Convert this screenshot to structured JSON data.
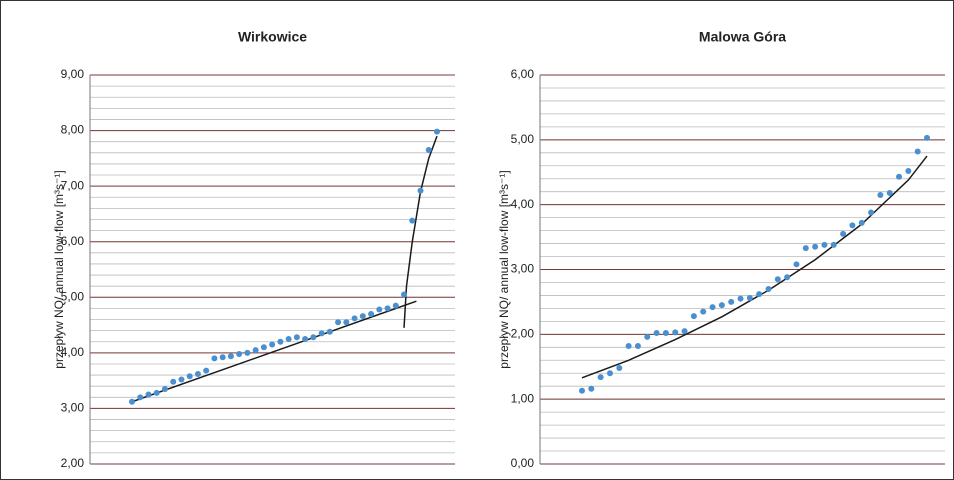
{
  "chart_data": [
    {
      "type": "scatter",
      "title": "Wirkowice",
      "y_label": "przepływ NQ/ annual low-flow [m³s⁻¹]",
      "ylim": [
        2,
        9
      ],
      "yticks": [
        {
          "value": 2,
          "label": "2,00"
        },
        {
          "value": 3,
          "label": "3,00"
        },
        {
          "value": 4,
          "label": "4,00"
        },
        {
          "value": 5,
          "label": "5,00"
        },
        {
          "value": 6,
          "label": "6,00"
        },
        {
          "value": 7,
          "label": "7,00"
        },
        {
          "value": 8,
          "label": "8,00"
        },
        {
          "value": 9,
          "label": "9,00"
        }
      ],
      "minor_grid_step": 0.2,
      "grid": true,
      "color": "#4a90d0",
      "trend_color": "#1a1a1a",
      "values": [
        3.12,
        3.2,
        3.25,
        3.28,
        3.35,
        3.48,
        3.52,
        3.58,
        3.62,
        3.68,
        3.9,
        3.92,
        3.94,
        3.98,
        4.0,
        4.05,
        4.1,
        4.15,
        4.2,
        4.25,
        4.28,
        4.25,
        4.28,
        4.35,
        4.38,
        4.55,
        4.55,
        4.62,
        4.66,
        4.7,
        4.78,
        4.8,
        4.85,
        5.05,
        6.38,
        6.92,
        7.65,
        7.98
      ],
      "trend_lines": [
        {
          "x": [
            0,
            34.5
          ],
          "values": [
            3.12,
            4.93
          ]
        },
        {
          "x": [
            33,
            33.3,
            34,
            35,
            36,
            37
          ],
          "values": [
            4.45,
            5.2,
            6.0,
            6.9,
            7.5,
            7.9
          ]
        }
      ]
    },
    {
      "type": "scatter",
      "title": "Malowa Góra",
      "y_label": "przepływ NQ/ annual low-flow [m³s⁻¹]",
      "ylim": [
        0,
        6
      ],
      "yticks": [
        {
          "value": 0,
          "label": "0,00"
        },
        {
          "value": 1,
          "label": "1,00"
        },
        {
          "value": 2,
          "label": "2,00"
        },
        {
          "value": 3,
          "label": "3,00"
        },
        {
          "value": 4,
          "label": "4,00"
        },
        {
          "value": 5,
          "label": "5,00"
        },
        {
          "value": 6,
          "label": "6,00"
        }
      ],
      "minor_grid_step": 0.2,
      "grid": true,
      "color": "#4a90d0",
      "trend_color": "#1a1a1a",
      "values": [
        1.13,
        1.16,
        1.34,
        1.4,
        1.48,
        1.82,
        1.82,
        1.96,
        2.02,
        2.02,
        2.03,
        2.05,
        2.28,
        2.35,
        2.42,
        2.45,
        2.5,
        2.55,
        2.56,
        2.62,
        2.7,
        2.85,
        2.88,
        3.08,
        3.33,
        3.35,
        3.38,
        3.38,
        3.55,
        3.68,
        3.72,
        3.88,
        4.15,
        4.18,
        4.43,
        4.52,
        4.82,
        5.03
      ],
      "trend_lines": [
        {
          "x": [
            0,
            5,
            10,
            15,
            20,
            25,
            30,
            35,
            37
          ],
          "values": [
            1.33,
            1.6,
            1.92,
            2.27,
            2.68,
            3.15,
            3.7,
            4.38,
            4.75
          ]
        }
      ]
    }
  ]
}
